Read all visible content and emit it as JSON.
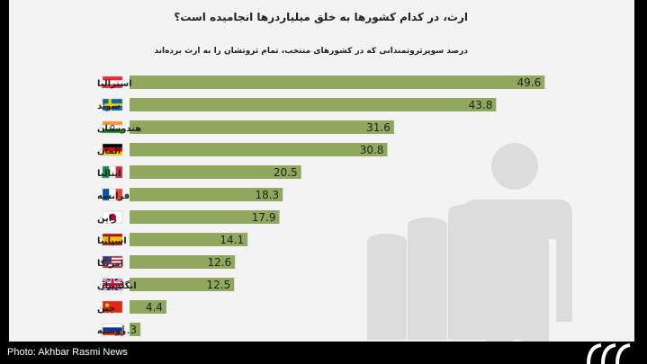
{
  "title": "ارث، در کدام کشورها به خلق میلیاردرها انجامیده است؟",
  "subtitle": "درصد سوپرثروتمندانی که در کشورهای منتخب، تمام ثروتشان را به ارث برده‌اند",
  "caption": "Photo: Akhbar Rasmi News",
  "colors": {
    "bar": "#8fa85e",
    "background": "#f3f3f3",
    "decor": "#d9d9d9"
  },
  "chart_data": {
    "type": "bar",
    "orientation": "horizontal",
    "categories": [
      "استرالیا",
      "سوئد",
      "هندوستان",
      "آلمان",
      "ایتالیا",
      "فرانسه",
      "ژاپن",
      "اسپانیا",
      "امریکا",
      "انگلستان",
      "چین",
      "روسیه"
    ],
    "flags": [
      "austria-flag",
      "sweden-flag",
      "india-flag",
      "germany-flag",
      "italy-flag",
      "france-flag",
      "japan-flag",
      "spain-flag",
      "usa-flag",
      "uk-flag",
      "china-flag",
      "russia-flag"
    ],
    "values": [
      49.6,
      43.8,
      31.6,
      30.8,
      20.5,
      18.3,
      17.9,
      14.1,
      12.6,
      12.5,
      4.4,
      1.3
    ],
    "xlim": [
      0,
      50
    ]
  }
}
